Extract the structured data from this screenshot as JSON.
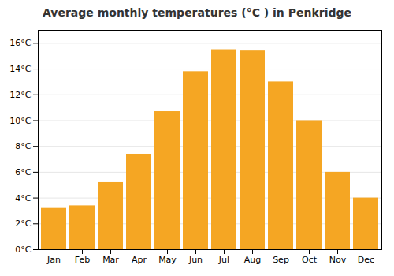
{
  "chart_data": {
    "type": "bar",
    "title": "Average monthly temperatures (°C ) in Penkridge",
    "categories": [
      "Jan",
      "Feb",
      "Mar",
      "Apr",
      "May",
      "Jun",
      "Jul",
      "Aug",
      "Sep",
      "Oct",
      "Nov",
      "Dec"
    ],
    "values": [
      3.2,
      3.4,
      5.2,
      7.4,
      10.7,
      13.8,
      15.5,
      15.4,
      13.0,
      10.0,
      6.0,
      4.0
    ],
    "color": "#F5A623",
    "ylim": [
      0,
      17
    ],
    "yticks": [
      {
        "value": 0,
        "label": "0°C"
      },
      {
        "value": 2,
        "label": "2°C"
      },
      {
        "value": 4,
        "label": "4°C"
      },
      {
        "value": 6,
        "label": "6°C"
      },
      {
        "value": 8,
        "label": "8°C"
      },
      {
        "value": 10,
        "label": "10°C"
      },
      {
        "value": 12,
        "label": "12°C"
      },
      {
        "value": 14,
        "label": "14°C"
      },
      {
        "value": 16,
        "label": "16°C"
      }
    ],
    "grid": true
  }
}
